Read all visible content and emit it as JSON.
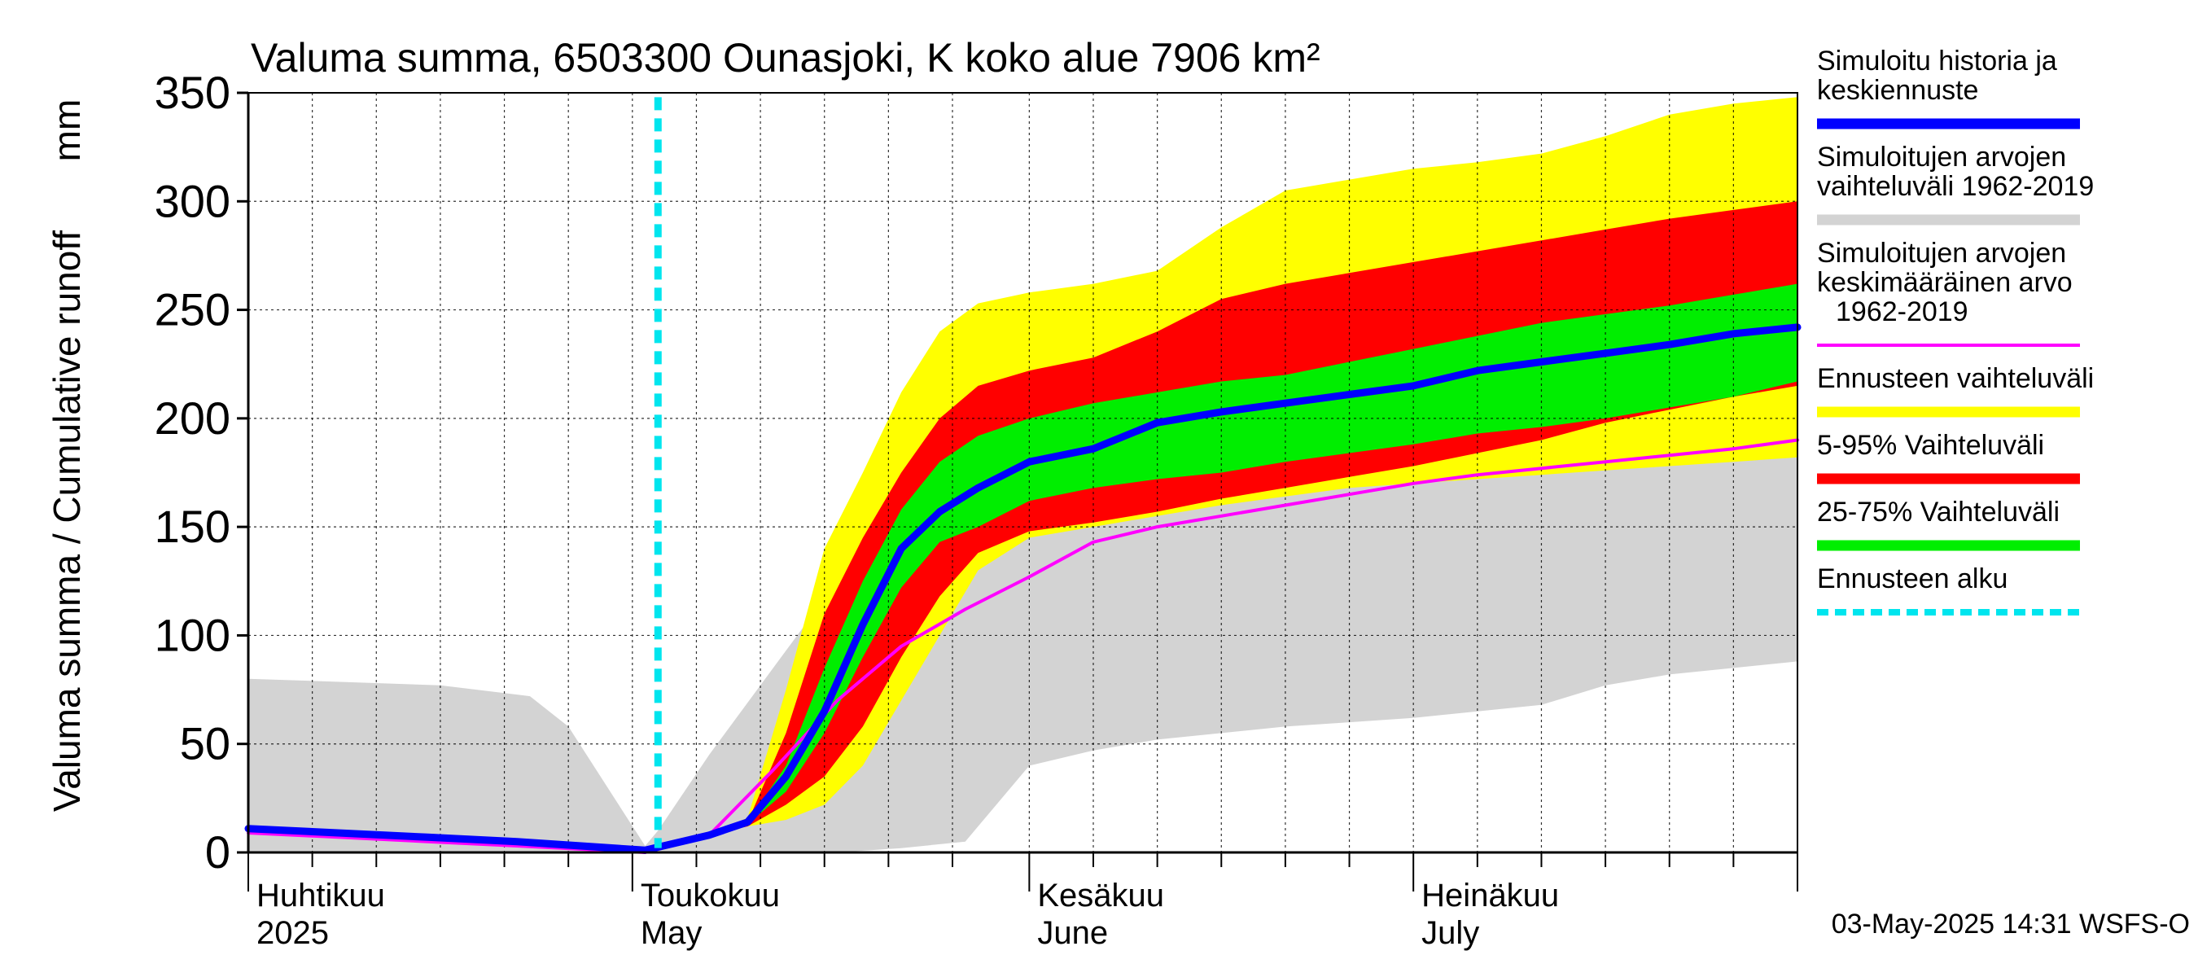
{
  "chart_data": {
    "type": "area",
    "title": "Valuma summa, 6503300 Ounasjoki, K koko alue 7906 km²",
    "ylabel": "Valuma summa / Cumulative runoff",
    "yunit": "mm",
    "ylim": [
      0,
      350
    ],
    "yticks": [
      0,
      50,
      100,
      150,
      200,
      250,
      300,
      350
    ],
    "xlim": [
      "2025-04-01",
      "2025-07-31"
    ],
    "month_labels": [
      {
        "date": "2025-04-01",
        "fi": "Huhtikuu",
        "en": "2025"
      },
      {
        "date": "2025-05-01",
        "fi": "Toukokuu",
        "en": "May"
      },
      {
        "date": "2025-06-01",
        "fi": "Kesäkuu",
        "en": "June"
      },
      {
        "date": "2025-07-01",
        "fi": "Heinäkuu",
        "en": "July"
      }
    ],
    "grid": true,
    "legend_position": "right",
    "forecast_start": "2025-05-03",
    "series": [
      {
        "name": "Simuloitujen arvojen vaihteluväli 1962-2019",
        "kind": "band",
        "color": "#d3d3d3",
        "x": [
          "2025-04-01",
          "2025-04-16",
          "2025-04-23",
          "2025-04-26",
          "2025-05-02",
          "2025-05-03",
          "2025-05-07",
          "2025-05-12",
          "2025-05-17",
          "2025-05-22",
          "2025-05-27",
          "2025-06-01",
          "2025-06-06",
          "2025-06-11",
          "2025-06-16",
          "2025-06-21",
          "2025-06-26",
          "2025-07-01",
          "2025-07-06",
          "2025-07-11",
          "2025-07-16",
          "2025-07-21",
          "2025-07-26",
          "2025-07-31"
        ],
        "upper": [
          80,
          77,
          72,
          58,
          3,
          10,
          45,
          85,
          125,
          155,
          182,
          212,
          222,
          260,
          283,
          292,
          296,
          300,
          301,
          302,
          305,
          310,
          316,
          321
        ],
        "lower": [
          0,
          0,
          0,
          0,
          0,
          0,
          0,
          0,
          0,
          2,
          5,
          40,
          47,
          52,
          55,
          58,
          60,
          62,
          65,
          68,
          77,
          82,
          85,
          88
        ]
      },
      {
        "name": "Ennusteen vaihteluväli",
        "kind": "band",
        "color": "#ffff00",
        "x": [
          "2025-05-03",
          "2025-05-07",
          "2025-05-10",
          "2025-05-13",
          "2025-05-16",
          "2025-05-19",
          "2025-05-22",
          "2025-05-25",
          "2025-05-28",
          "2025-06-01",
          "2025-06-06",
          "2025-06-11",
          "2025-06-16",
          "2025-06-21",
          "2025-06-26",
          "2025-07-01",
          "2025-07-06",
          "2025-07-11",
          "2025-07-16",
          "2025-07-21",
          "2025-07-26",
          "2025-07-31"
        ],
        "upper": [
          1,
          8,
          16,
          75,
          140,
          175,
          212,
          240,
          253,
          258,
          262,
          268,
          288,
          305,
          310,
          315,
          318,
          322,
          330,
          340,
          345,
          348
        ],
        "lower": [
          1,
          8,
          12,
          15,
          22,
          40,
          70,
          100,
          130,
          145,
          150,
          155,
          160,
          164,
          168,
          170,
          172,
          174,
          176,
          178,
          180,
          182
        ]
      },
      {
        "name": "5-95% Vaihteluväli",
        "kind": "band",
        "color": "#ff0000",
        "x": [
          "2025-05-03",
          "2025-05-07",
          "2025-05-10",
          "2025-05-13",
          "2025-05-16",
          "2025-05-19",
          "2025-05-22",
          "2025-05-25",
          "2025-05-28",
          "2025-06-01",
          "2025-06-06",
          "2025-06-11",
          "2025-06-16",
          "2025-06-21",
          "2025-06-26",
          "2025-07-01",
          "2025-07-06",
          "2025-07-11",
          "2025-07-16",
          "2025-07-21",
          "2025-07-26",
          "2025-07-31"
        ],
        "upper": [
          1,
          8,
          14,
          55,
          110,
          145,
          175,
          200,
          215,
          222,
          228,
          240,
          255,
          262,
          267,
          272,
          277,
          282,
          287,
          292,
          296,
          300
        ],
        "lower": [
          1,
          8,
          12,
          22,
          35,
          58,
          90,
          118,
          138,
          148,
          152,
          157,
          163,
          168,
          173,
          178,
          184,
          190,
          198,
          204,
          210,
          215
        ]
      },
      {
        "name": "25-75% Vaihteluväli",
        "kind": "band",
        "color": "#00ee00",
        "x": [
          "2025-05-03",
          "2025-05-07",
          "2025-05-10",
          "2025-05-13",
          "2025-05-16",
          "2025-05-19",
          "2025-05-22",
          "2025-05-25",
          "2025-05-28",
          "2025-06-01",
          "2025-06-06",
          "2025-06-11",
          "2025-06-16",
          "2025-06-21",
          "2025-06-26",
          "2025-07-01",
          "2025-07-06",
          "2025-07-11",
          "2025-07-16",
          "2025-07-21",
          "2025-07-26",
          "2025-07-31"
        ],
        "upper": [
          1,
          8,
          14,
          40,
          85,
          125,
          158,
          180,
          192,
          200,
          207,
          212,
          217,
          220,
          226,
          232,
          238,
          244,
          248,
          252,
          257,
          262
        ],
        "lower": [
          1,
          8,
          13,
          28,
          55,
          90,
          122,
          143,
          150,
          162,
          168,
          172,
          175,
          180,
          184,
          188,
          193,
          196,
          200,
          205,
          210,
          217
        ]
      },
      {
        "name": "Simuloitujen arvojen keskimääräinen arvo 1962-2019",
        "kind": "line",
        "color": "#ff00ff",
        "x": [
          "2025-04-01",
          "2025-04-08",
          "2025-04-15",
          "2025-04-22",
          "2025-05-02",
          "2025-05-07",
          "2025-05-12",
          "2025-05-17",
          "2025-05-22",
          "2025-05-27",
          "2025-06-01",
          "2025-06-06",
          "2025-06-11",
          "2025-06-16",
          "2025-06-21",
          "2025-06-26",
          "2025-07-01",
          "2025-07-06",
          "2025-07-11",
          "2025-07-16",
          "2025-07-21",
          "2025-07-26",
          "2025-07-31"
        ],
        "values": [
          9,
          7,
          5,
          3,
          0,
          8,
          38,
          70,
          95,
          112,
          127,
          143,
          150,
          155,
          160,
          165,
          170,
          174,
          177,
          180,
          183,
          186,
          190
        ]
      },
      {
        "name": "Simuloitu historia ja keskiennuste",
        "kind": "line",
        "color": "#0000ff",
        "x": [
          "2025-04-01",
          "2025-04-08",
          "2025-04-15",
          "2025-04-22",
          "2025-05-02",
          "2025-05-07",
          "2025-05-10",
          "2025-05-13",
          "2025-05-16",
          "2025-05-19",
          "2025-05-22",
          "2025-05-25",
          "2025-05-28",
          "2025-06-01",
          "2025-06-06",
          "2025-06-11",
          "2025-06-16",
          "2025-06-21",
          "2025-06-26",
          "2025-07-01",
          "2025-07-06",
          "2025-07-11",
          "2025-07-16",
          "2025-07-21",
          "2025-07-26",
          "2025-07-31"
        ],
        "values": [
          11,
          9,
          7,
          5,
          1,
          8,
          14,
          35,
          65,
          105,
          140,
          157,
          168,
          180,
          186,
          198,
          203,
          207,
          211,
          215,
          222,
          226,
          230,
          234,
          239,
          242
        ]
      }
    ]
  },
  "legend": [
    {
      "lines": [
        "Simuloitu historia ja",
        "keskiennuste"
      ],
      "color": "#0000ff",
      "style": "thick"
    },
    {
      "lines": [
        "Simuloitujen arvojen",
        "vaihteluväli 1962-2019"
      ],
      "color": "#d3d3d3",
      "style": "thick"
    },
    {
      "lines": [
        "Simuloitujen arvojen",
        "keskimääräinen arvo",
        "1962-2019"
      ],
      "color": "#ff00ff",
      "style": "thin"
    },
    {
      "lines": [
        "Ennusteen vaihteluväli"
      ],
      "color": "#ffff00",
      "style": "thick"
    },
    {
      "lines": [
        "5-95% Vaihteluväli"
      ],
      "color": "#ff0000",
      "style": "thick"
    },
    {
      "lines": [
        "25-75% Vaihteluväli"
      ],
      "color": "#00ee00",
      "style": "thick"
    },
    {
      "lines": [
        "Ennusteen alku"
      ],
      "color": "#00e5ee",
      "style": "dashed"
    }
  ],
  "footer": "03-May-2025 14:31 WSFS-O"
}
